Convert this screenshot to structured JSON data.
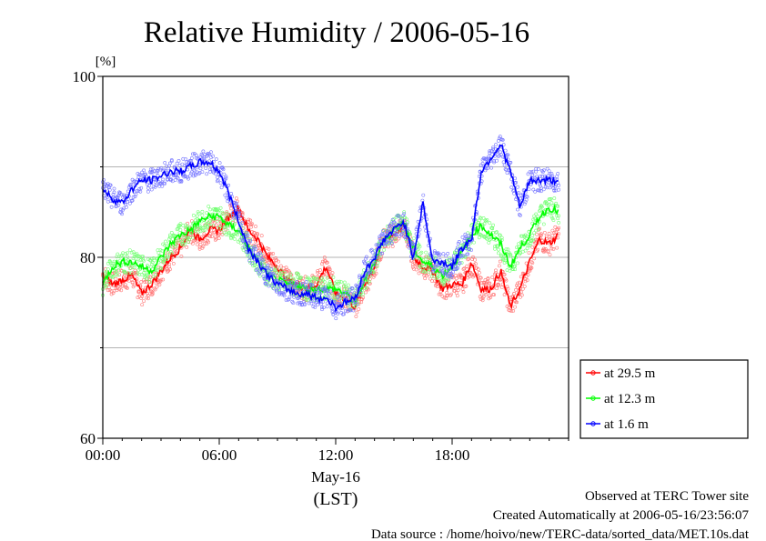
{
  "chart_data": {
    "type": "line",
    "title": "Relative Humidity / 2006-05-16",
    "y_unit": "[%]",
    "ylim": [
      60,
      100
    ],
    "y_ticks": [
      60,
      80,
      100
    ],
    "y_gridlines": [
      70,
      80,
      90
    ],
    "xlim": [
      0,
      24
    ],
    "x_ticks": [
      0,
      6,
      12,
      18
    ],
    "x_tick_labels": [
      "00:00",
      "06:00",
      "12:00",
      "18:00"
    ],
    "x_date_label": "May-16",
    "x_axis_label": "(LST)",
    "grid": true,
    "legend_position": "right",
    "series": [
      {
        "name": "at 29.5 m",
        "color": "#ff0000",
        "x": [
          0,
          0.5,
          1,
          1.5,
          2,
          2.5,
          3,
          3.5,
          4,
          4.5,
          5,
          5.5,
          6,
          6.5,
          7,
          7.5,
          8,
          8.5,
          9,
          9.5,
          10,
          10.5,
          11,
          11.5,
          12,
          12.5,
          13,
          13.5,
          14,
          14.5,
          15,
          15.5,
          16,
          16.5,
          17,
          17.5,
          18,
          18.5,
          19,
          19.5,
          20,
          20.5,
          21,
          21.5,
          22,
          22.5,
          23,
          23.5
        ],
        "values": [
          78,
          77,
          77.5,
          78,
          76,
          77,
          78.5,
          80,
          81,
          83,
          82,
          83,
          83,
          84.5,
          85.5,
          83,
          82,
          80,
          79,
          77.5,
          77,
          76.5,
          77,
          79,
          76,
          75.5,
          74.5,
          77,
          79,
          82,
          82.5,
          83.5,
          80,
          79,
          78.5,
          76.5,
          77,
          77,
          79.5,
          76.5,
          76.5,
          78.5,
          74.5,
          76.5,
          79.5,
          82,
          81.5,
          82.5
        ]
      },
      {
        "name": "at 12.3 m",
        "color": "#00ff00",
        "x": [
          0,
          0.5,
          1,
          1.5,
          2,
          2.5,
          3,
          3.5,
          4,
          4.5,
          5,
          5.5,
          6,
          6.5,
          7,
          7.5,
          8,
          8.5,
          9,
          9.5,
          10,
          10.5,
          11,
          11.5,
          12,
          12.5,
          13,
          13.5,
          14,
          14.5,
          15,
          15.5,
          16,
          16.5,
          17,
          17.5,
          18,
          18.5,
          19,
          19.5,
          20,
          20.5,
          21,
          21.5,
          22,
          22.5,
          23,
          23.5
        ],
        "values": [
          77,
          79,
          79.5,
          79.5,
          79,
          78.5,
          80,
          81.5,
          82.5,
          83,
          84,
          84.5,
          84.5,
          83.5,
          83,
          81,
          79.5,
          78,
          77.5,
          77,
          77,
          76.5,
          76.5,
          76.5,
          76.5,
          76,
          75,
          77.5,
          79.5,
          82,
          83,
          84,
          81,
          79.5,
          79,
          78,
          79,
          80.5,
          82.5,
          83.5,
          82.5,
          81.5,
          79,
          81,
          82.5,
          84.5,
          85.5,
          85
        ]
      },
      {
        "name": "at 1.6 m",
        "color": "#0000ff",
        "x": [
          0,
          0.5,
          1,
          1.5,
          2,
          2.5,
          3,
          3.5,
          4,
          4.5,
          5,
          5.5,
          6,
          6.5,
          7,
          7.5,
          8,
          8.5,
          9,
          9.5,
          10,
          10.5,
          11,
          11.5,
          12,
          12.5,
          13,
          13.5,
          14,
          14.5,
          15,
          15.5,
          16,
          16.5,
          17,
          17.5,
          18,
          18.5,
          19,
          19.5,
          20,
          20.5,
          21,
          21.5,
          22,
          22.5,
          23,
          23.5
        ],
        "values": [
          87.5,
          86.5,
          86,
          87.5,
          88.5,
          88.5,
          89,
          89.5,
          89.5,
          90,
          90.5,
          90.5,
          89.5,
          87,
          84,
          81,
          79.5,
          78,
          77,
          76.5,
          76,
          76,
          75.5,
          75.5,
          74.5,
          75,
          75.5,
          78.5,
          80,
          82,
          83,
          84,
          80,
          86,
          79.5,
          79.5,
          79,
          81,
          82,
          89.5,
          91,
          92.5,
          89.5,
          85.5,
          88.5,
          88.5,
          88.5,
          88.5
        ]
      }
    ]
  },
  "footer": {
    "line1": "Observed at TERC Tower site",
    "line2": "Created Automatically at 2006-05-16/23:56:07",
    "line3": "Data source : /home/hoivo/new/TERC-data/sorted_data/MET.10s.dat"
  }
}
